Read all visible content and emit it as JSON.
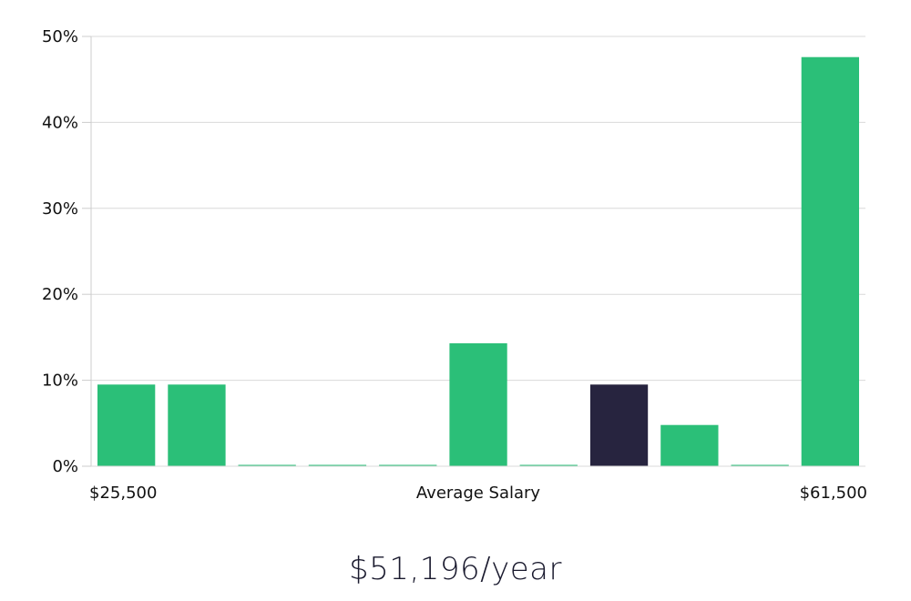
{
  "chart_data": {
    "type": "bar",
    "x_labels": {
      "left": "$25,500",
      "center": "Average Salary",
      "right": "$61,500"
    },
    "y_ticks": [
      "0%",
      "10%",
      "20%",
      "30%",
      "40%",
      "50%"
    ],
    "ylim": [
      0,
      50
    ],
    "y_unit": "%",
    "grid": true,
    "values": [
      9.5,
      9.5,
      0,
      0,
      0,
      14.3,
      0,
      9.5,
      4.8,
      0,
      47.6
    ],
    "highlight_index": 7,
    "colors": {
      "bar": "#2bbf78",
      "highlight": "#27243f",
      "grid": "#d9d9d9",
      "axis": "#cccccc"
    }
  },
  "summary": {
    "average_salary": "$51,196/year"
  }
}
